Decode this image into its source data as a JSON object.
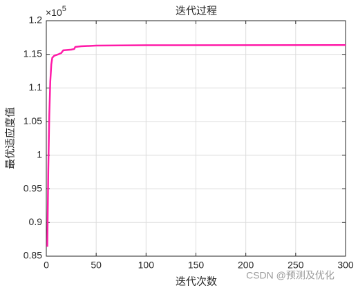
{
  "chart_data": {
    "type": "line",
    "title": "迭代过程",
    "x_label": "迭代次数",
    "y_label": "最优适应度值",
    "y_multiplier": {
      "base": "×10",
      "exponent": "5"
    },
    "watermark": "CSDN @预测及优化",
    "x": [
      1,
      2,
      3,
      4,
      5,
      6,
      8,
      12,
      15,
      17,
      25,
      28,
      29,
      35,
      50,
      100,
      300
    ],
    "series": [
      {
        "name": "最优适应度值",
        "color": "#ff1aa8",
        "values": [
          0.864,
          0.98,
          1.06,
          1.11,
          1.135,
          1.145,
          1.148,
          1.15,
          1.152,
          1.156,
          1.157,
          1.158,
          1.161,
          1.162,
          1.163,
          1.1635,
          1.1638
        ]
      }
    ],
    "xlim": [
      0,
      300
    ],
    "xticks": [
      0,
      50,
      100,
      150,
      200,
      250,
      300
    ],
    "ylim": [
      0.85,
      1.2
    ],
    "yticks": [
      0.85,
      0.9,
      0.95,
      1,
      1.05,
      1.1,
      1.15,
      1.2
    ],
    "grid": true
  }
}
